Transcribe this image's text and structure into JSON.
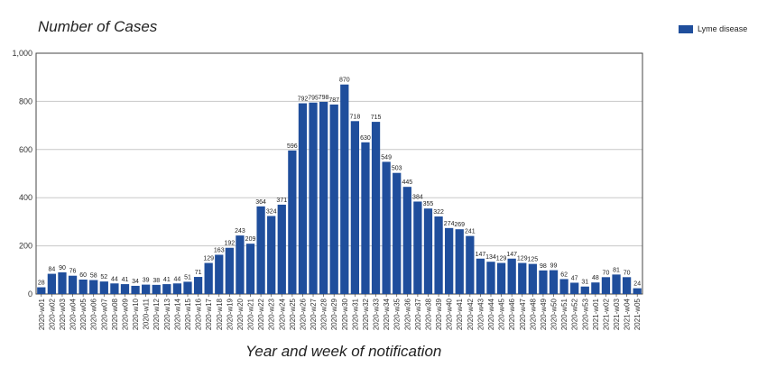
{
  "colors": {
    "bar": "#1f4e9c",
    "grid": "#c8c8c8",
    "axis": "#444444"
  },
  "chart_data": {
    "type": "bar",
    "title": "Number of Cases",
    "xlabel": "Year and week of notification",
    "ylabel": "",
    "ylim": [
      0,
      1000
    ],
    "yticks": [
      "0",
      "200",
      "400",
      "600",
      "800",
      "1,000"
    ],
    "grid": true,
    "legend_position": "top-right",
    "categories": [
      "2020-w01",
      "2020-w02",
      "2020-w03",
      "2020-w04",
      "2020-w05",
      "2020-w06",
      "2020-w07",
      "2020-w08",
      "2020-w09",
      "2020-w10",
      "2020-w11",
      "2020-w12",
      "2020-w13",
      "2020-w14",
      "2020-w15",
      "2020-w16",
      "2020-w17",
      "2020-w18",
      "2020-w19",
      "2020-w20",
      "2020-w21",
      "2020-w22",
      "2020-w23",
      "2020-w24",
      "2020-w25",
      "2020-w26",
      "2020-w27",
      "2020-w28",
      "2020-w29",
      "2020-w30",
      "2020-w31",
      "2020-w32",
      "2020-w33",
      "2020-w34",
      "2020-w35",
      "2020-w36",
      "2020-w37",
      "2020-w38",
      "2020-w39",
      "2020-w40",
      "2020-w41",
      "2020-w42",
      "2020-w43",
      "2020-w44",
      "2020-w45",
      "2020-w46",
      "2020-w47",
      "2020-w48",
      "2020-w49",
      "2020-w50",
      "2020-w51",
      "2020-w52",
      "2020-w53",
      "2021-w01",
      "2021-w02",
      "2021-w03",
      "2021-w04",
      "2021-w05"
    ],
    "series": [
      {
        "name": "Lyme disease",
        "values": [
          28,
          84,
          90,
          76,
          60,
          58,
          52,
          44,
          41,
          34,
          39,
          38,
          41,
          44,
          51,
          71,
          129,
          163,
          192,
          243,
          209,
          364,
          324,
          371,
          596,
          792,
          795,
          798,
          787,
          870,
          718,
          630,
          715,
          549,
          503,
          445,
          384,
          355,
          322,
          274,
          269,
          241,
          147,
          134,
          129,
          147,
          129,
          125,
          98,
          99,
          62,
          47,
          31,
          48,
          70,
          81,
          70,
          24
        ]
      }
    ]
  }
}
